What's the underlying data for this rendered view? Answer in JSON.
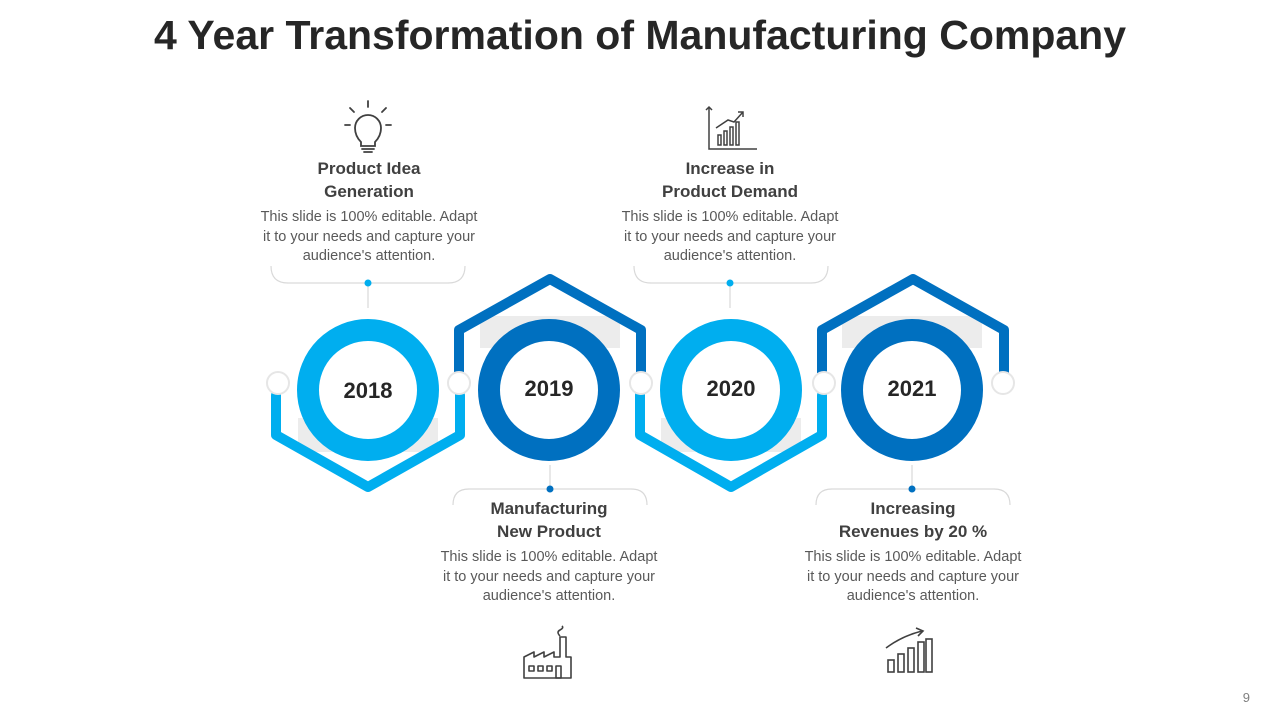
{
  "title": "4 Year Transformation of Manufacturing Company",
  "page_number": "9",
  "colors": {
    "light_blue": "#00AEEF",
    "dark_blue": "#0070C0",
    "connector_grey": "#BFBFBF"
  },
  "milestones": [
    {
      "year": "2018",
      "heading_line1": "Product Idea",
      "heading_line2": "Generation",
      "description_line1": "This slide is 100% editable. Adapt",
      "description_line2": "it to your needs and capture your",
      "description_line3": "audience's attention.",
      "icon": "lightbulb-icon"
    },
    {
      "year": "2019",
      "heading_line1": "Manufacturing",
      "heading_line2": "New Product",
      "description_line1": "This slide is 100% editable. Adapt",
      "description_line2": "it to your needs and capture your",
      "description_line3": "audience's attention.",
      "icon": "factory-icon"
    },
    {
      "year": "2020",
      "heading_line1": "Increase in",
      "heading_line2": "Product Demand",
      "description_line1": "This slide is 100% editable. Adapt",
      "description_line2": "it to your needs and capture your",
      "description_line3": "audience's attention.",
      "icon": "growth-chart-icon"
    },
    {
      "year": "2021",
      "heading_line1": "Increasing",
      "heading_line2": "Revenues by 20 %",
      "description_line1": "This slide is 100% editable. Adapt",
      "description_line2": "it to your needs and capture your",
      "description_line3": "audience's attention.",
      "icon": "bar-chart-arrow-icon"
    }
  ]
}
